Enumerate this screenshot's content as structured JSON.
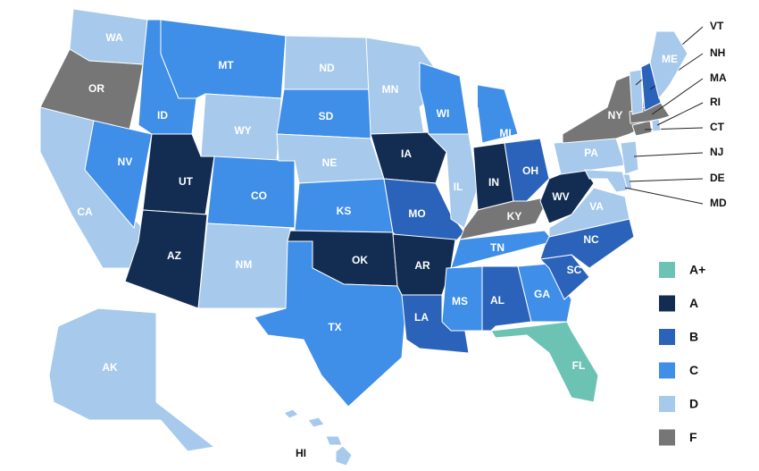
{
  "states": [
    {
      "abbr": "WA",
      "grade": "D"
    },
    {
      "abbr": "OR",
      "grade": "F"
    },
    {
      "abbr": "CA",
      "grade": "D"
    },
    {
      "abbr": "NV",
      "grade": "C"
    },
    {
      "abbr": "ID",
      "grade": "C"
    },
    {
      "abbr": "MT",
      "grade": "C"
    },
    {
      "abbr": "WY",
      "grade": "D"
    },
    {
      "abbr": "UT",
      "grade": "A"
    },
    {
      "abbr": "AZ",
      "grade": "A"
    },
    {
      "abbr": "CO",
      "grade": "C"
    },
    {
      "abbr": "NM",
      "grade": "D"
    },
    {
      "abbr": "ND",
      "grade": "D"
    },
    {
      "abbr": "SD",
      "grade": "C"
    },
    {
      "abbr": "NE",
      "grade": "D"
    },
    {
      "abbr": "KS",
      "grade": "C"
    },
    {
      "abbr": "OK",
      "grade": "A"
    },
    {
      "abbr": "TX",
      "grade": "C"
    },
    {
      "abbr": "MN",
      "grade": "D"
    },
    {
      "abbr": "IA",
      "grade": "A"
    },
    {
      "abbr": "MO",
      "grade": "B"
    },
    {
      "abbr": "AR",
      "grade": "A"
    },
    {
      "abbr": "LA",
      "grade": "B"
    },
    {
      "abbr": "WI",
      "grade": "C"
    },
    {
      "abbr": "IL",
      "grade": "D"
    },
    {
      "abbr": "MI",
      "grade": "C"
    },
    {
      "abbr": "IN",
      "grade": "A"
    },
    {
      "abbr": "OH",
      "grade": "B"
    },
    {
      "abbr": "KY",
      "grade": "F"
    },
    {
      "abbr": "TN",
      "grade": "C"
    },
    {
      "abbr": "MS",
      "grade": "C"
    },
    {
      "abbr": "AL",
      "grade": "B"
    },
    {
      "abbr": "GA",
      "grade": "C"
    },
    {
      "abbr": "FL",
      "grade": "A+"
    },
    {
      "abbr": "SC",
      "grade": "B"
    },
    {
      "abbr": "NC",
      "grade": "B"
    },
    {
      "abbr": "VA",
      "grade": "D"
    },
    {
      "abbr": "WV",
      "grade": "A"
    },
    {
      "abbr": "PA",
      "grade": "D"
    },
    {
      "abbr": "NY",
      "grade": "F"
    },
    {
      "abbr": "NJ",
      "grade": "D"
    },
    {
      "abbr": "DE",
      "grade": "D"
    },
    {
      "abbr": "MD",
      "grade": "D"
    },
    {
      "abbr": "CT",
      "grade": "F"
    },
    {
      "abbr": "RI",
      "grade": "D"
    },
    {
      "abbr": "MA",
      "grade": "F"
    },
    {
      "abbr": "VT",
      "grade": "D"
    },
    {
      "abbr": "NH",
      "grade": "B"
    },
    {
      "abbr": "ME",
      "grade": "D"
    },
    {
      "abbr": "AK",
      "grade": "D"
    },
    {
      "abbr": "HI",
      "grade": "D"
    }
  ],
  "legend": [
    {
      "label": "A+",
      "color": "#6cc3b4"
    },
    {
      "label": "A",
      "color": "#132d52"
    },
    {
      "label": "B",
      "color": "#2a63b9"
    },
    {
      "label": "C",
      "color": "#3f8ee8"
    },
    {
      "label": "D",
      "color": "#a6c9ec"
    },
    {
      "label": "F",
      "color": "#767676"
    }
  ]
}
